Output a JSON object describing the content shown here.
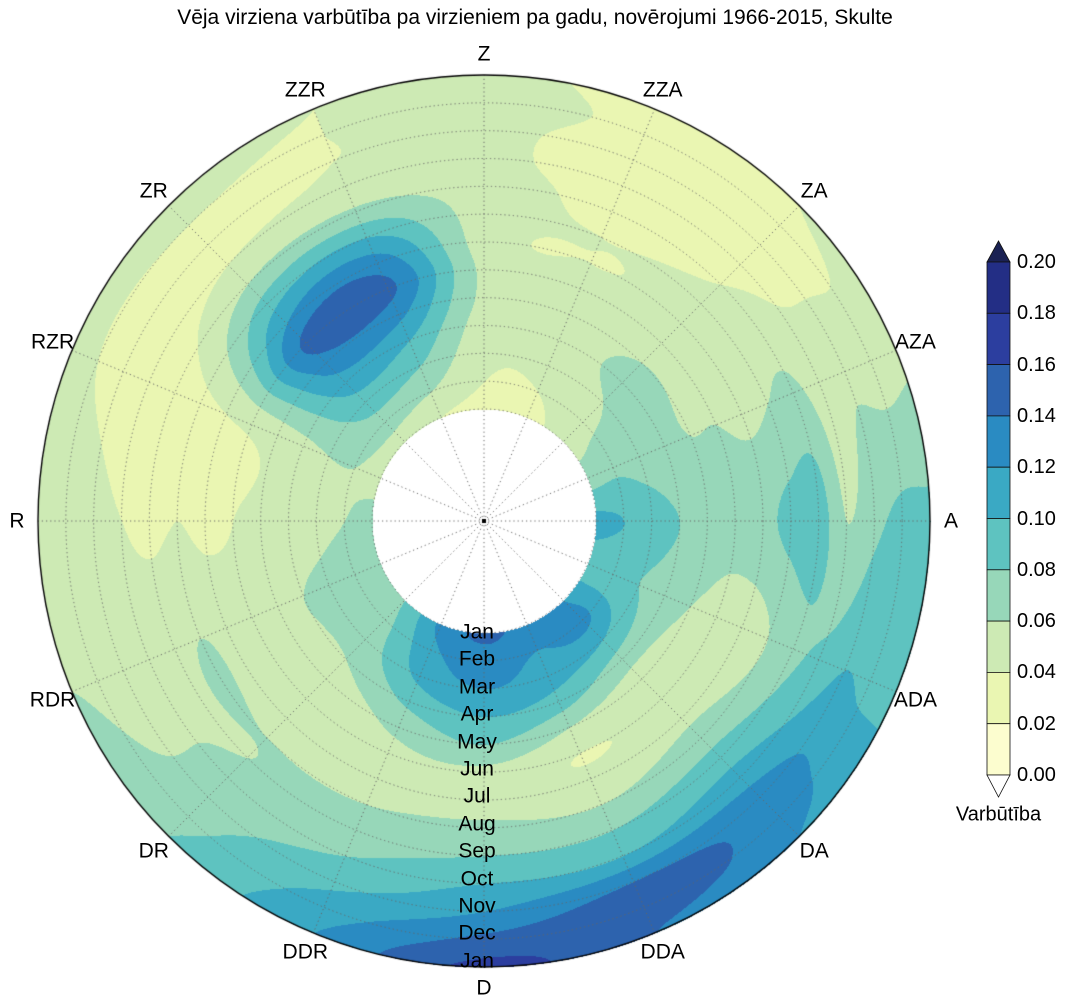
{
  "title": "Vēja virziena varbūtība pa virzieniem pa gadu, novērojumi 1966-2015, Skulte",
  "chart_data": {
    "type": "heatmap",
    "subtype": "polar-filled-contour",
    "angular_axis": "wind direction, clockwise from Z (north) at top",
    "radial_axis": "month, Jan at inner hole to Jan at outer edge",
    "grid": "dotted polar grid, 16 spokes, 13 month rings, white inner hole",
    "directions": [
      "Z",
      "ZZA",
      "ZA",
      "AZA",
      "A",
      "ADA",
      "DA",
      "DDA",
      "D",
      "DDR",
      "DR",
      "RDR",
      "R",
      "RZR",
      "ZR",
      "ZZR"
    ],
    "direction_angles_deg": [
      0,
      22.5,
      45,
      67.5,
      90,
      112.5,
      135,
      157.5,
      180,
      202.5,
      225,
      247.5,
      270,
      292.5,
      315,
      337.5
    ],
    "months": [
      "Jan",
      "Feb",
      "Mar",
      "Apr",
      "May",
      "Jun",
      "Jul",
      "Aug",
      "Sep",
      "Oct",
      "Nov",
      "Dec",
      "Jan"
    ],
    "values": [
      [
        0.035,
        0.04,
        0.045,
        0.05,
        0.055,
        0.055,
        0.05,
        0.05,
        0.05,
        0.045,
        0.045,
        0.05,
        0.045
      ],
      [
        0.035,
        0.04,
        0.045,
        0.05,
        0.05,
        0.045,
        0.04,
        0.04,
        0.035,
        0.03,
        0.03,
        0.035,
        0.035
      ],
      [
        0.05,
        0.055,
        0.06,
        0.065,
        0.06,
        0.05,
        0.045,
        0.045,
        0.04,
        0.035,
        0.03,
        0.035,
        0.04
      ],
      [
        0.07,
        0.075,
        0.07,
        0.065,
        0.06,
        0.06,
        0.055,
        0.06,
        0.065,
        0.05,
        0.055,
        0.05,
        0.055
      ],
      [
        0.105,
        0.1,
        0.09,
        0.08,
        0.075,
        0.07,
        0.075,
        0.085,
        0.09,
        0.06,
        0.075,
        0.085,
        0.085
      ],
      [
        0.09,
        0.085,
        0.08,
        0.07,
        0.06,
        0.05,
        0.05,
        0.06,
        0.075,
        0.085,
        0.1,
        0.095,
        0.095
      ],
      [
        0.12,
        0.125,
        0.1,
        0.07,
        0.05,
        0.045,
        0.055,
        0.07,
        0.09,
        0.11,
        0.13,
        0.13,
        0.12
      ],
      [
        0.13,
        0.12,
        0.11,
        0.09,
        0.06,
        0.04,
        0.045,
        0.06,
        0.08,
        0.1,
        0.14,
        0.15,
        0.14
      ],
      [
        0.145,
        0.13,
        0.12,
        0.1,
        0.08,
        0.055,
        0.05,
        0.065,
        0.08,
        0.1,
        0.12,
        0.145,
        0.165
      ],
      [
        0.125,
        0.115,
        0.105,
        0.085,
        0.065,
        0.055,
        0.055,
        0.06,
        0.07,
        0.08,
        0.095,
        0.11,
        0.12
      ],
      [
        0.08,
        0.075,
        0.07,
        0.06,
        0.05,
        0.05,
        0.055,
        0.06,
        0.06,
        0.065,
        0.07,
        0.075,
        0.08
      ],
      [
        0.07,
        0.07,
        0.065,
        0.06,
        0.055,
        0.05,
        0.055,
        0.06,
        0.055,
        0.05,
        0.045,
        0.055,
        0.06
      ],
      [
        0.065,
        0.06,
        0.055,
        0.05,
        0.045,
        0.04,
        0.035,
        0.04,
        0.035,
        0.04,
        0.045,
        0.05,
        0.05
      ],
      [
        0.055,
        0.06,
        0.06,
        0.055,
        0.05,
        0.045,
        0.04,
        0.035,
        0.03,
        0.03,
        0.035,
        0.04,
        0.045
      ],
      [
        0.05,
        0.07,
        0.09,
        0.11,
        0.13,
        0.145,
        0.12,
        0.09,
        0.06,
        0.04,
        0.035,
        0.04,
        0.045
      ],
      [
        0.04,
        0.06,
        0.08,
        0.1,
        0.125,
        0.145,
        0.13,
        0.1,
        0.065,
        0.045,
        0.04,
        0.04,
        0.04
      ]
    ],
    "levels": [
      0.0,
      0.02,
      0.04,
      0.06,
      0.08,
      0.1,
      0.12,
      0.14,
      0.16,
      0.18,
      0.2
    ],
    "colors": {
      "bins": [
        "#fcfdcf",
        "#eaf6b2",
        "#cdeab4",
        "#97d7b9",
        "#5ec3c0",
        "#3aa9c4",
        "#2a8bc2",
        "#2d63ae",
        "#2c3e9f",
        "#232e85"
      ],
      "over": "#1a2153",
      "under": "#ffffff",
      "grid": "#666666",
      "outline": "#000000"
    },
    "colorbar": {
      "label": "Varbūtība",
      "ticks": [
        "0.20",
        "0.18",
        "0.16",
        "0.14",
        "0.12",
        "0.10",
        "0.08",
        "0.06",
        "0.04",
        "0.02",
        "0.00"
      ],
      "orientation": "vertical-right",
      "extend": "both"
    }
  }
}
